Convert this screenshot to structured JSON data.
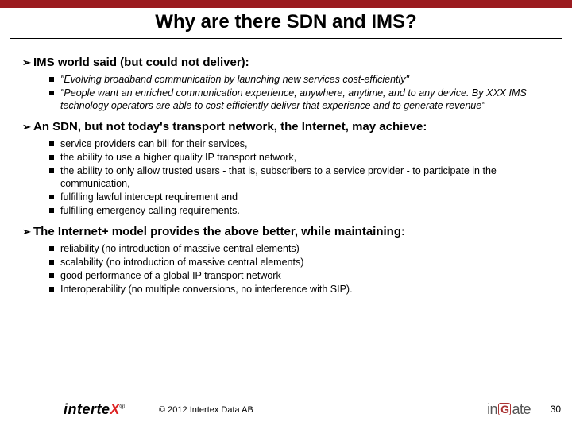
{
  "colors": {
    "topbar": "#9b1b1f",
    "background": "#ffffff",
    "text": "#000000",
    "logo_x": "#d22",
    "ingate_box": "#a33"
  },
  "typography": {
    "title_fontsize": 24,
    "section_fontsize": 15,
    "body_fontsize": 12.5,
    "footer_fontsize": 11,
    "font_family": "Arial"
  },
  "title": "Why are there SDN and IMS?",
  "sections": [
    {
      "heading": "IMS world said (but could not deliver):",
      "italic": true,
      "items": [
        "\"Evolving broadband communication by launching new services cost-efficiently\"",
        "\"People want an enriched communication experience, anywhere, anytime, and to any device. By XXX IMS technology operators are able to cost efficiently deliver that experience and to generate revenue\""
      ]
    },
    {
      "heading": "An SDN, but not today's transport network, the Internet, may achieve:",
      "italic": false,
      "items": [
        "service providers can bill for their services,",
        "the ability to use a higher quality IP transport network,",
        "the ability to only allow trusted users - that is, subscribers to a service provider - to participate in the communication,",
        "fulfilling lawful intercept requirement and",
        "fulfilling emergency calling requirements."
      ]
    },
    {
      "heading": "The Internet+ model provides the above better, while maintaining:",
      "italic": false,
      "items": [
        "reliability  (no introduction of massive central elements)",
        "scalability (no introduction of massive central elements)",
        "good performance of a global IP transport network",
        "Interoperability (no multiple conversions, no interference with SIP)."
      ]
    }
  ],
  "footer": {
    "logo_left_main": "interte",
    "logo_left_x": "X",
    "logo_left_r": "®",
    "copyright": "© 2012 Intertex Data AB",
    "logo_right_pre": "in",
    "logo_right_g": "G",
    "logo_right_post": "ate",
    "pagenum": "30"
  }
}
